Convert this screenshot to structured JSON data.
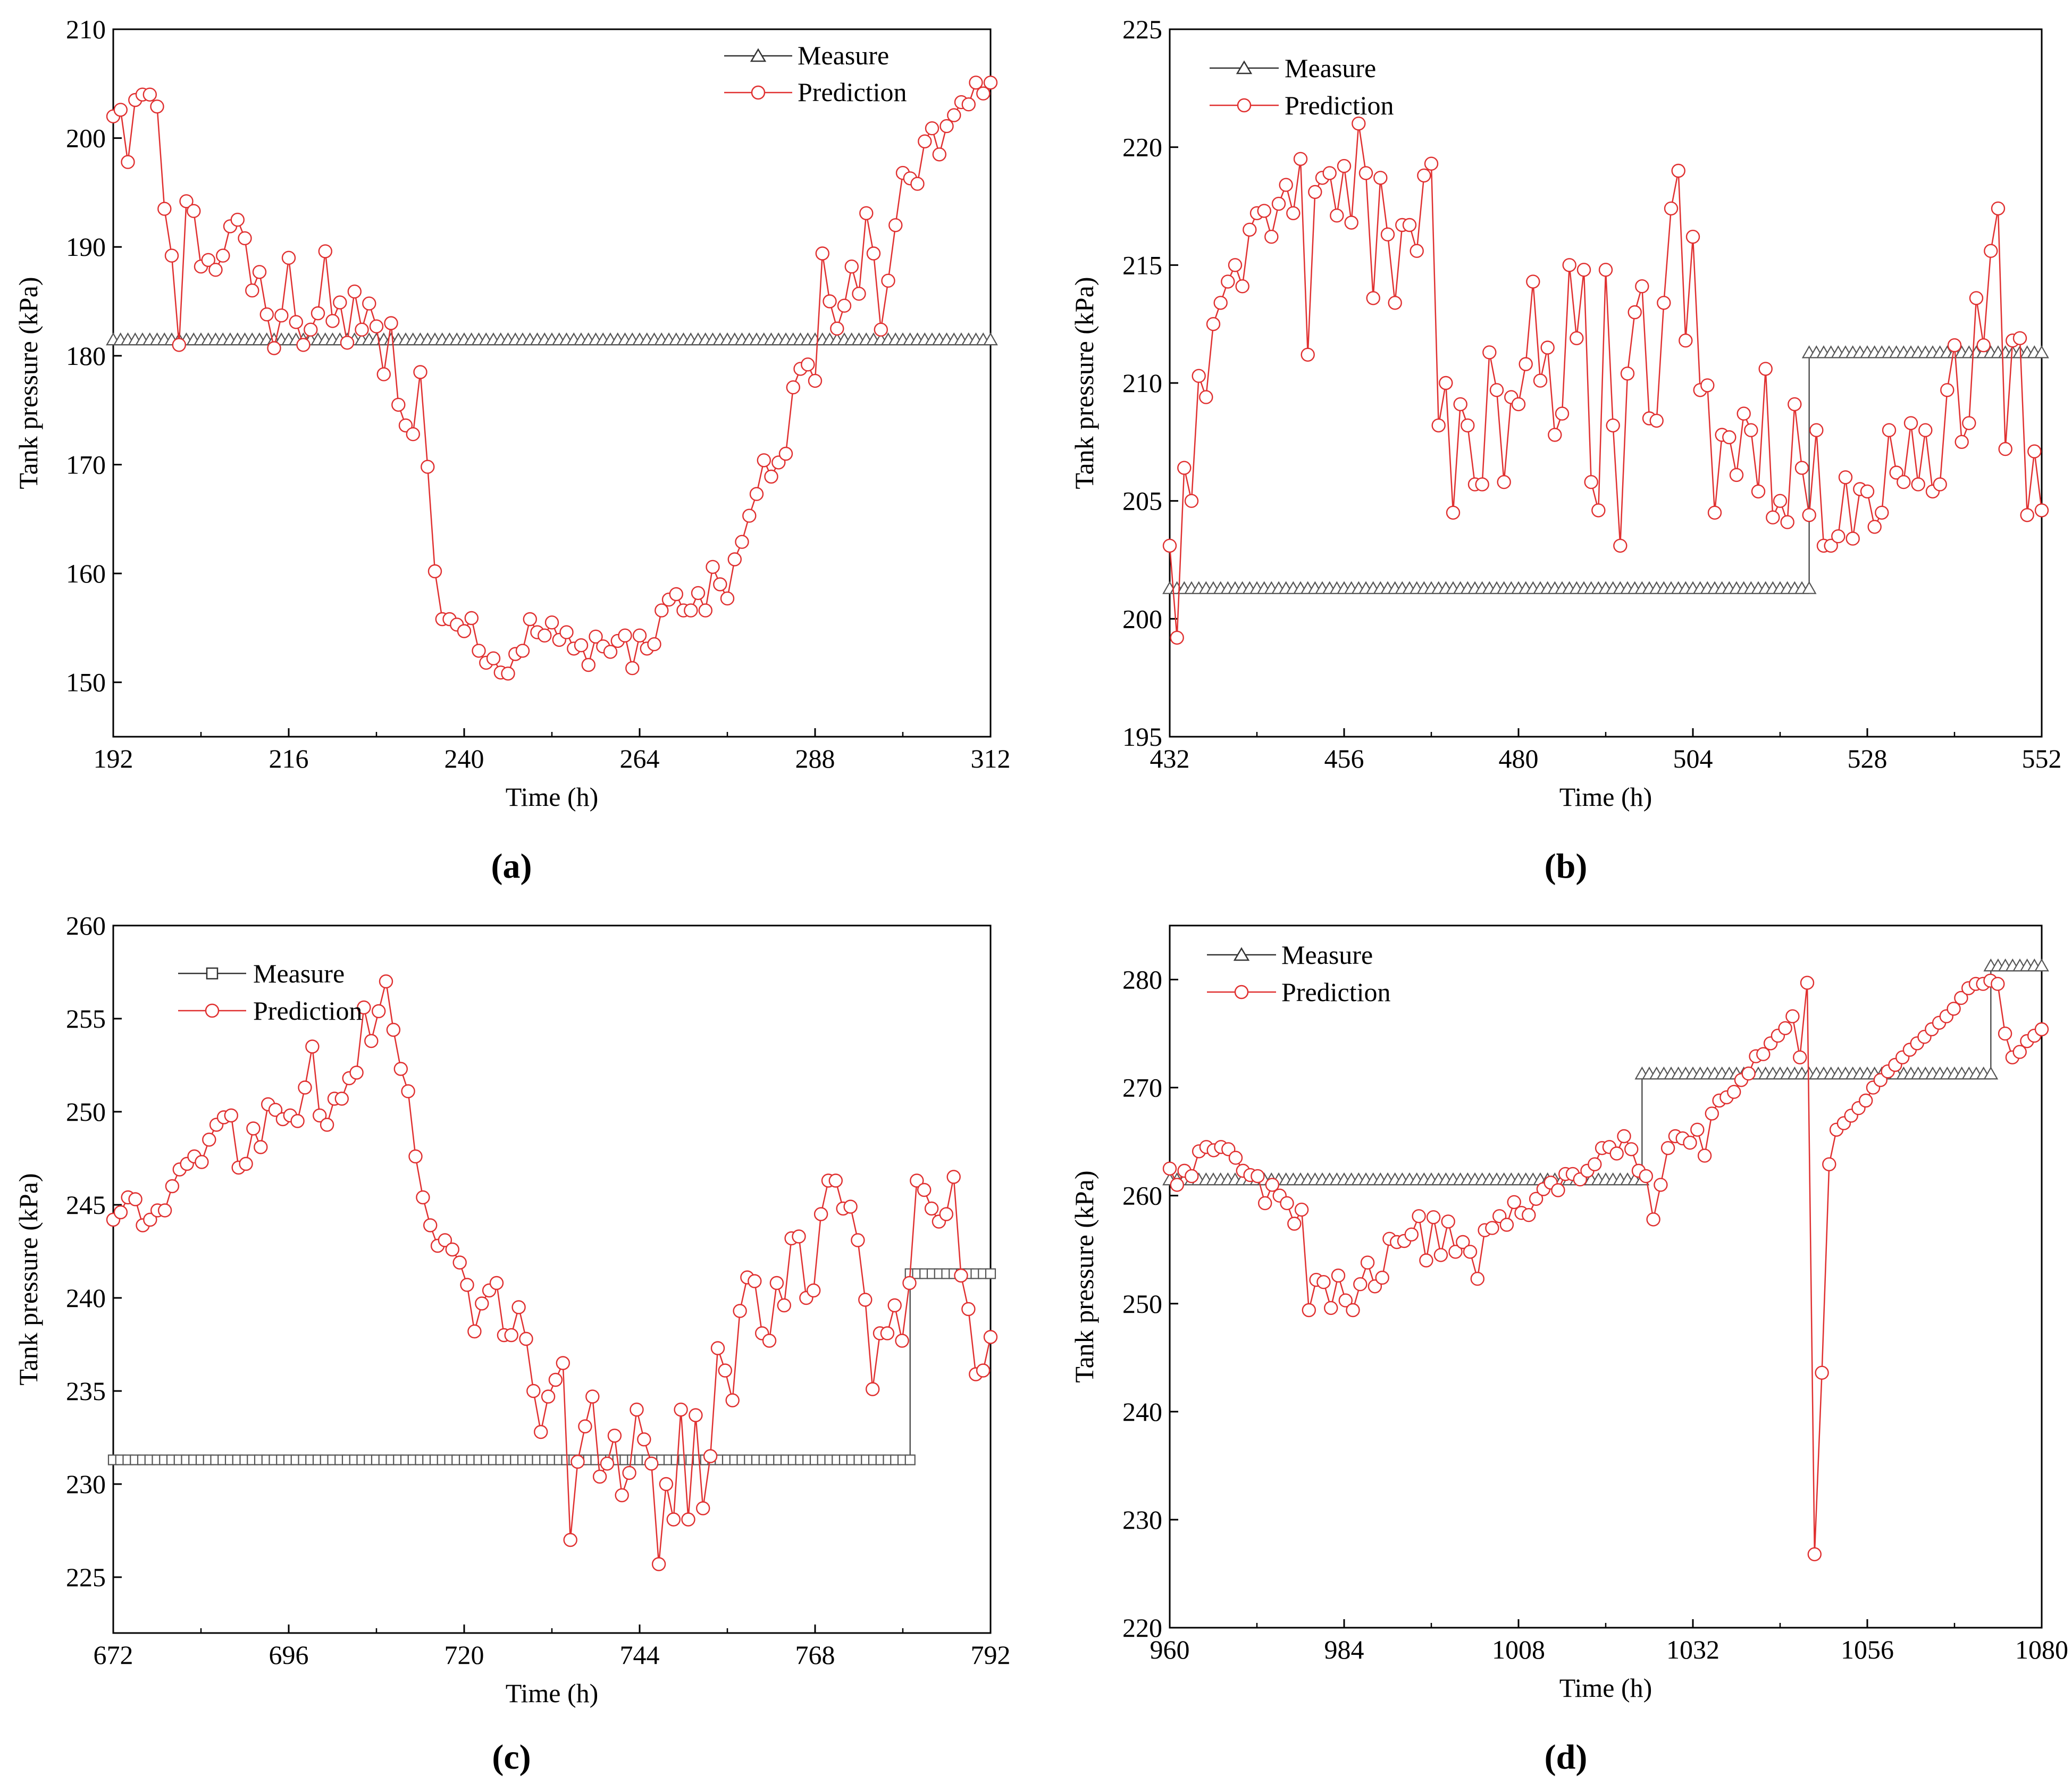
{
  "chart_data": [
    {
      "type": "line",
      "panel_label": "(a)",
      "xlabel": "Time (h)",
      "ylabel": "Tank pressure (kPa)",
      "xlim": [
        192,
        312
      ],
      "ylim": [
        145,
        210
      ],
      "xticks": [
        192,
        216,
        240,
        264,
        288,
        312
      ],
      "yticks": [
        150,
        160,
        170,
        180,
        190,
        200,
        210
      ],
      "legend": "top-right",
      "colors": {
        "measure": "#555555",
        "prediction": "#e03030"
      },
      "series": [
        {
          "name": "Measure",
          "marker": "triangle",
          "x_start": 192,
          "x_end": 312,
          "segments": [
            [
              192,
              312,
              181.5
            ]
          ]
        },
        {
          "name": "Prediction",
          "marker": "circle",
          "x_start": 192,
          "x_end": 312,
          "values": [
            202,
            202.6,
            197.8,
            203.5,
            204,
            204,
            202.9,
            193.5,
            189.2,
            181,
            194.2,
            193.3,
            188.2,
            188.8,
            187.9,
            189.2,
            191.9,
            192.5,
            190.8,
            186,
            187.7,
            183.8,
            180.7,
            183.7,
            189,
            183.1,
            181,
            182.4,
            183.9,
            189.6,
            183.2,
            184.9,
            181.2,
            185.9,
            182.4,
            184.8,
            182.7,
            178.3,
            183.0,
            175.5,
            173.6,
            172.8,
            178.5,
            169.8,
            160.2,
            155.8,
            155.8,
            155.3,
            154.7,
            155.9,
            152.9,
            151.8,
            152.2,
            150.9,
            150.8,
            152.6,
            152.9,
            155.8,
            154.6,
            154.3,
            155.5,
            153.9,
            154.6,
            153.1,
            153.4,
            151.6,
            154.2,
            153.3,
            152.8,
            153.8,
            154.3,
            151.3,
            154.3,
            153.1,
            153.5,
            156.6,
            157.6,
            158.1,
            156.6,
            156.6,
            158.2,
            156.6,
            160.6,
            159,
            157.7,
            161.3,
            162.9,
            165.3,
            167.3,
            170.4,
            168.9,
            170.2,
            171,
            177.1,
            178.8,
            179.2,
            177.7,
            189.4,
            185,
            182.5,
            184.6,
            188.2,
            185.7,
            193.1,
            189.4,
            182.4,
            186.9,
            192,
            196.8,
            196.3,
            195.8,
            199.7,
            200.9,
            198.5,
            201.1,
            202.1,
            203.3,
            203.1,
            205.1,
            204.1,
            205.1
          ]
        }
      ]
    },
    {
      "type": "line",
      "panel_label": "(b)",
      "xlabel": "Time (h)",
      "ylabel": "Tank pressure (kPa)",
      "xlim": [
        432,
        552
      ],
      "ylim": [
        195,
        225
      ],
      "xticks": [
        432,
        456,
        480,
        504,
        528,
        552
      ],
      "yticks": [
        195,
        200,
        205,
        210,
        215,
        220,
        225
      ],
      "legend": "top-left",
      "colors": {
        "measure": "#555555",
        "prediction": "#e03030"
      },
      "series": [
        {
          "name": "Measure",
          "marker": "triangle",
          "x_start": 432,
          "x_end": 552,
          "segments": [
            [
              432,
              520,
              201.3
            ],
            [
              520,
              552,
              211.3
            ]
          ]
        },
        {
          "name": "Prediction",
          "marker": "circle",
          "x_start": 432,
          "x_end": 552,
          "values": [
            203.1,
            199.2,
            206.4,
            205,
            210.3,
            209.4,
            212.5,
            213.4,
            214.3,
            215,
            214.1,
            216.5,
            217.2,
            217.3,
            216.2,
            217.6,
            218.4,
            217.2,
            219.5,
            211.2,
            218.1,
            218.7,
            218.9,
            217.1,
            219.2,
            216.8,
            221.0,
            218.9,
            213.6,
            218.7,
            216.3,
            213.4,
            216.7,
            216.7,
            215.6,
            218.8,
            219.3,
            208.2,
            210,
            204.5,
            209.1,
            208.2,
            205.7,
            205.7,
            211.3,
            209.7,
            205.8,
            209.4,
            209.1,
            210.8,
            214.3,
            210.1,
            211.5,
            207.8,
            208.7,
            215,
            211.9,
            214.8,
            205.8,
            204.6,
            214.8,
            208.2,
            203.1,
            210.4,
            213,
            214.1,
            208.5,
            208.4,
            213.4,
            217.4,
            219,
            211.8,
            216.2,
            209.7,
            209.9,
            204.5,
            207.8,
            207.7,
            206.1,
            208.7,
            208,
            205.4,
            210.6,
            204.3,
            205,
            204.1,
            209.1,
            206.4,
            204.4,
            208,
            203.1,
            203.1,
            203.5,
            206,
            203.4,
            205.5,
            205.4,
            203.9,
            204.5,
            208,
            206.2,
            205.8,
            208.3,
            205.7,
            208.0,
            205.4,
            205.7,
            209.7,
            211.6,
            207.5,
            208.3,
            213.6,
            211.6,
            215.6,
            217.4,
            207.2,
            211.8,
            211.9,
            204.4,
            207.1,
            204.6
          ]
        }
      ]
    },
    {
      "type": "line",
      "panel_label": "(c)",
      "xlabel": "Time (h)",
      "ylabel": "Tank pressure (kPa)",
      "xlim": [
        672,
        792
      ],
      "ylim": [
        222,
        260
      ],
      "xticks": [
        672,
        696,
        720,
        744,
        768,
        792
      ],
      "yticks": [
        225,
        230,
        235,
        240,
        245,
        250,
        255,
        260
      ],
      "legend": "top-left",
      "colors": {
        "measure": "#555555",
        "prediction": "#e03030"
      },
      "series": [
        {
          "name": "Measure",
          "marker": "square",
          "x_start": 672,
          "x_end": 792,
          "segments": [
            [
              672,
              781,
              231.3
            ],
            [
              781,
              792,
              241.3
            ]
          ]
        },
        {
          "name": "Prediction",
          "marker": "circle",
          "x_start": 672,
          "x_end": 792,
          "values": [
            244.2,
            244.6,
            245.4,
            245.3,
            243.9,
            244.2,
            244.7,
            244.7,
            246,
            246.9,
            247.2,
            247.6,
            247.3,
            248.5,
            249.3,
            249.7,
            249.8,
            247,
            247.2,
            249.1,
            248.1,
            250.4,
            250.1,
            249.6,
            249.8,
            249.5,
            251.3,
            253.5,
            249.8,
            249.3,
            250.7,
            250.7,
            251.8,
            252.1,
            255.6,
            253.8,
            255.4,
            257,
            254.4,
            252.3,
            251.1,
            247.6,
            245.4,
            243.9,
            242.8,
            243.1,
            242.6,
            241.9,
            240.7,
            238.2,
            239.7,
            240.4,
            240.8,
            238.0,
            238.0,
            239.5,
            237.8,
            235.0,
            232.8,
            234.7,
            235.6,
            236.5,
            227.0,
            231.2,
            233.1,
            234.7,
            230.4,
            231.1,
            232.6,
            229.4,
            230.6,
            234.0,
            232.4,
            231.1,
            225.7,
            230.0,
            228.1,
            234.0,
            228.1,
            233.7,
            228.7,
            231.5,
            237.3,
            236.1,
            234.5,
            239.3,
            241.1,
            240.9,
            238.1,
            237.7,
            240.8,
            239.6,
            243.2,
            243.3,
            240.0,
            240.4,
            244.5,
            246.3,
            246.3,
            244.8,
            244.9,
            243.1,
            239.9,
            235.1,
            238.1,
            238.1,
            239.6,
            237.7,
            240.8,
            246.3,
            245.8,
            244.8,
            244.1,
            244.5,
            246.5,
            241.2,
            239.4,
            235.9,
            236.1,
            237.9
          ]
        }
      ]
    },
    {
      "type": "line",
      "panel_label": "(d)",
      "xlabel": "Time (h)",
      "ylabel": "Tank pressure (kPa)",
      "xlim": [
        960,
        1080
      ],
      "ylim": [
        220,
        285
      ],
      "xticks": [
        960,
        984,
        1008,
        1032,
        1056,
        1080
      ],
      "yticks": [
        220,
        230,
        240,
        250,
        260,
        270,
        280
      ],
      "legend": "top-left",
      "colors": {
        "measure": "#555555",
        "prediction": "#e03030"
      },
      "series": [
        {
          "name": "Measure",
          "marker": "triangle",
          "x_start": 960,
          "x_end": 1080,
          "segments": [
            [
              960,
              1025,
              261.5
            ],
            [
              1025,
              1073,
              271.3
            ],
            [
              1073,
              1080,
              281.3
            ]
          ]
        },
        {
          "name": "Prediction",
          "marker": "circle",
          "x_start": 960,
          "x_end": 1080,
          "values": [
            262.5,
            261,
            262.3,
            261.8,
            264.1,
            264.5,
            264.2,
            264.5,
            264.3,
            263.5,
            262.3,
            261.9,
            261.8,
            259.3,
            261,
            260,
            259.3,
            257.4,
            258.7,
            249.4,
            252.2,
            252,
            249.6,
            252.6,
            250.3,
            249.4,
            251.8,
            253.8,
            251.6,
            252.4,
            256.0,
            255.7,
            255.8,
            256.4,
            258.1,
            254,
            258,
            254.5,
            257.6,
            254.8,
            255.7,
            254.8,
            252.3,
            256.8,
            257,
            258.1,
            257.3,
            259.4,
            258.4,
            258.2,
            259.7,
            260.6,
            261.2,
            260.5,
            262,
            262,
            261.5,
            262.3,
            262.9,
            264.4,
            264.5,
            263.9,
            265.5,
            264.3,
            262.3,
            261.8,
            257.8,
            261,
            264.4,
            265.5,
            265.3,
            264.9,
            266.1,
            263.7,
            267.6,
            268.8,
            269.1,
            269.6,
            270.7,
            271.3,
            272.9,
            273.1,
            274.1,
            274.8,
            275.5,
            276.6,
            272.8,
            279.7,
            226.8,
            243.6,
            262.9,
            266.1,
            266.7,
            267.4,
            268.1,
            268.8,
            270.0,
            270.7,
            271.5,
            272.1,
            272.8,
            273.5,
            274.1,
            274.7,
            275.4,
            276.0,
            276.6,
            277.3,
            278.3,
            279.2,
            279.6,
            279.6,
            279.9,
            279.6,
            275.0,
            272.8,
            273.3,
            274.3,
            274.8,
            275.4
          ]
        }
      ]
    }
  ]
}
